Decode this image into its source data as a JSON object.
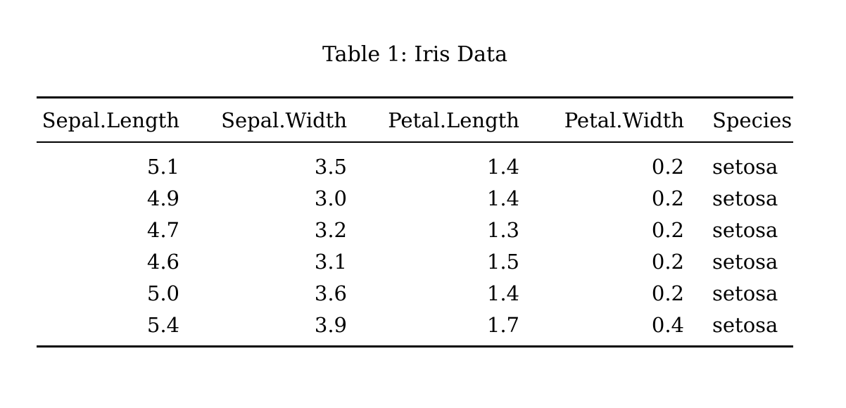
{
  "caption": "Table 1: Iris Data",
  "table": {
    "columns": [
      "Sepal.Length",
      "Sepal.Width",
      "Petal.Length",
      "Petal.Width",
      "Species"
    ],
    "numeric_columns": [
      0,
      1,
      2,
      3
    ],
    "rows": [
      [
        "5.1",
        "3.5",
        "1.4",
        "0.2",
        "setosa"
      ],
      [
        "4.9",
        "3.0",
        "1.4",
        "0.2",
        "setosa"
      ],
      [
        "4.7",
        "3.2",
        "1.3",
        "0.2",
        "setosa"
      ],
      [
        "4.6",
        "3.1",
        "1.5",
        "0.2",
        "setosa"
      ],
      [
        "5.0",
        "3.6",
        "1.4",
        "0.2",
        "setosa"
      ],
      [
        "5.4",
        "3.9",
        "1.7",
        "0.4",
        "setosa"
      ]
    ]
  },
  "colors": {
    "background": "#ffffff",
    "text": "#000000",
    "rule": "#000000"
  }
}
